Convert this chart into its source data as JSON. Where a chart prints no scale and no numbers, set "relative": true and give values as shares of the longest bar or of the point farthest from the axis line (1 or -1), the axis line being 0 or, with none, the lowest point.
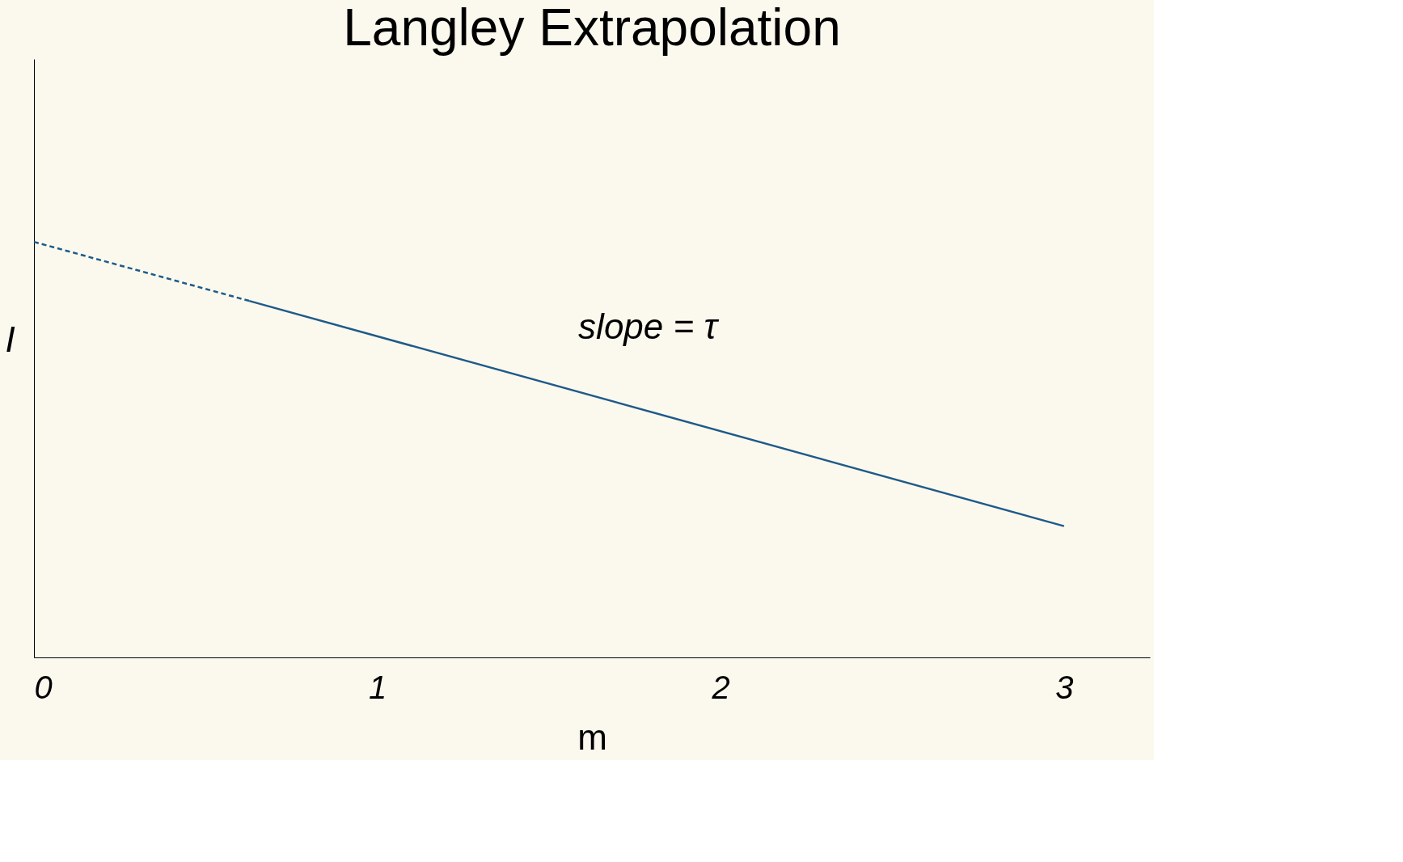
{
  "chart_data": {
    "type": "line",
    "title": "Langley Extrapolation",
    "xlabel": "m",
    "ylabel": "I",
    "relative": true,
    "xlim": [
      0,
      3.25
    ],
    "xticks": [
      0,
      1,
      2,
      3
    ],
    "grid": false,
    "marker": "none",
    "series": [
      {
        "color": "#1f5a8a",
        "line_style": "dashed",
        "x": [
          0,
          0.627
        ],
        "values": [
          1,
          0.858
        ]
      },
      {
        "color": "#1f5a8a",
        "line_style": "solid",
        "x": [
          0.627,
          3
        ],
        "values": [
          0.858,
          0.316
        ]
      }
    ],
    "annotations": [
      "slope = τ"
    ]
  }
}
